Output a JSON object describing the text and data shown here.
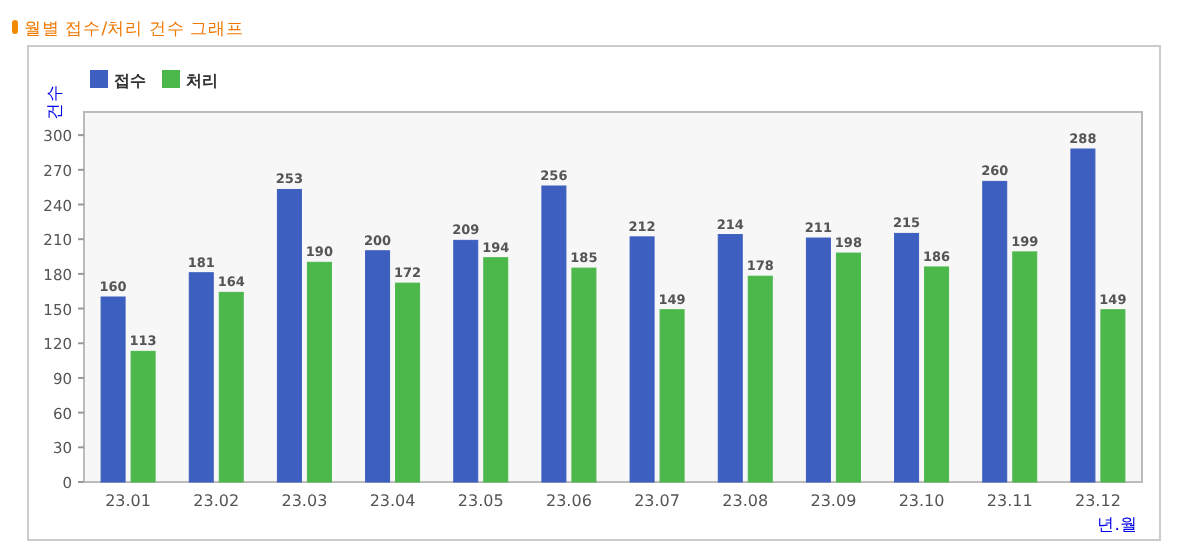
{
  "chart_data": {
    "type": "bar",
    "title": "월별 접수/처리 건수 그래프",
    "xlabel": "년.월",
    "ylabel": "건수",
    "categories": [
      "23.01",
      "23.02",
      "23.03",
      "23.04",
      "23.05",
      "23.06",
      "23.07",
      "23.08",
      "23.09",
      "23.10",
      "23.11",
      "23.12"
    ],
    "series": [
      {
        "name": "접수",
        "color": "#3d5fbf",
        "values": [
          160,
          181,
          253,
          200,
          209,
          256,
          212,
          214,
          211,
          215,
          260,
          288
        ]
      },
      {
        "name": "처리",
        "color": "#4cb84c",
        "values": [
          113,
          164,
          190,
          172,
          194,
          185,
          149,
          178,
          198,
          186,
          199,
          149
        ]
      }
    ],
    "ylim": [
      0,
      320
    ],
    "yticks": [
      0,
      30,
      60,
      90,
      120,
      150,
      180,
      210,
      240,
      270,
      300
    ],
    "data_labels": true,
    "legend": "top left",
    "grid": false
  }
}
